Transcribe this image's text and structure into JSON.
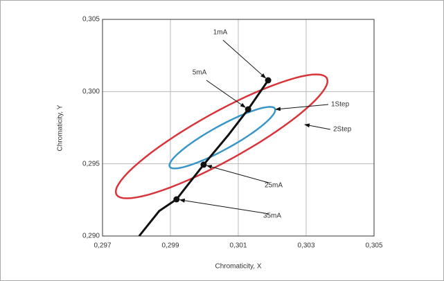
{
  "chart_data": {
    "type": "scatter",
    "x_label": "Chromaticity, X",
    "y_label": "Chromaticity, Y",
    "xlim": [
      0.297,
      0.305
    ],
    "ylim": [
      0.29,
      0.305
    ],
    "xticks": [
      {
        "value": 0.297,
        "label": "0,297"
      },
      {
        "value": 0.299,
        "label": "0,299"
      },
      {
        "value": 0.301,
        "label": "0,301"
      },
      {
        "value": 0.303,
        "label": "0,303"
      },
      {
        "value": 0.305,
        "label": "0,305"
      }
    ],
    "yticks": [
      {
        "value": 0.29,
        "label": "0,290"
      },
      {
        "value": 0.295,
        "label": "0,295"
      },
      {
        "value": 0.3,
        "label": "0,300"
      },
      {
        "value": 0.305,
        "label": "0,305"
      }
    ],
    "grid": true,
    "curve": {
      "color": "#111111",
      "x": [
        0.29808,
        0.29867,
        0.29918,
        0.29998,
        0.30071,
        0.30129,
        0.30188
      ],
      "y": [
        0.29,
        0.29173,
        0.29254,
        0.29494,
        0.297,
        0.29877,
        0.30078
      ]
    },
    "points": {
      "color": "#111111",
      "labels": [
        "1mA",
        "5mA",
        "25mA",
        "35mA"
      ],
      "x": [
        0.30188,
        0.30129,
        0.29998,
        0.29918
      ],
      "y": [
        0.30078,
        0.29877,
        0.29494,
        0.29254
      ]
    },
    "ellipses": [
      {
        "name": "1Step",
        "color": "#3a96c9",
        "center": [
          0.30053,
          0.29681
        ],
        "major": [
          0.00155,
          0.00201
        ],
        "minor": [
          0.00017,
          -0.00071
        ]
      },
      {
        "name": "2Step",
        "color": "#d9343a",
        "center": [
          0.30051,
          0.2969
        ],
        "major": [
          0.0031,
          0.00403
        ],
        "minor": [
          0.00035,
          -0.00147
        ]
      }
    ]
  }
}
